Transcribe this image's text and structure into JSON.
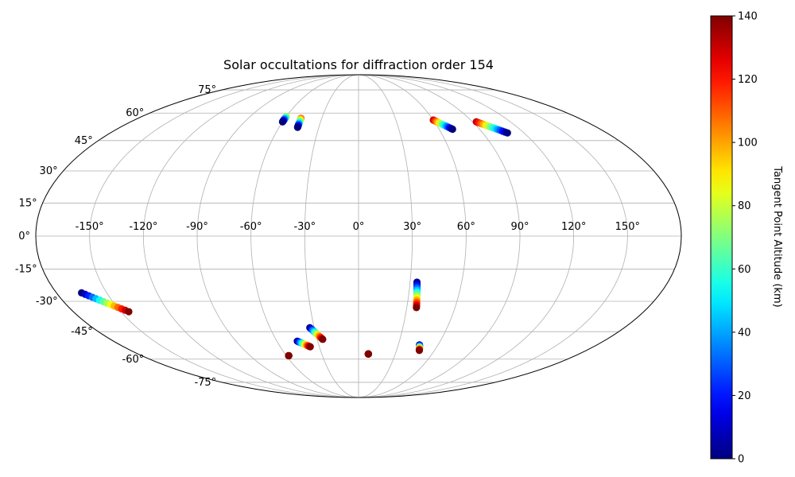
{
  "chart_data": {
    "type": "scatter",
    "projection": "mollweide",
    "title": "Solar occultations for diffraction order 154",
    "grid": true,
    "lon_ticks": [
      -150,
      -120,
      -90,
      -60,
      -30,
      0,
      30,
      60,
      90,
      120,
      150
    ],
    "lon_tick_labels": [
      "-150°",
      "-120°",
      "-90°",
      "-60°",
      "-30°",
      "0°",
      "30°",
      "60°",
      "90°",
      "120°",
      "150°"
    ],
    "lat_ticks": [
      -75,
      -60,
      -45,
      -30,
      -15,
      0,
      15,
      30,
      45,
      60,
      75
    ],
    "lat_tick_labels": [
      "-75°",
      "-60°",
      "-45°",
      "-30°",
      "-15°",
      "0°",
      "15°",
      "30°",
      "45°",
      "60°",
      "75°"
    ],
    "colorbar": {
      "label": "Tangent Point Altitude (km)",
      "colormap": "jet",
      "min": 0,
      "max": 140,
      "ticks": [
        0,
        20,
        40,
        60,
        80,
        100,
        120,
        140
      ],
      "tick_labels": [
        "0",
        "20",
        "40",
        "60",
        "80",
        "100",
        "120",
        "140"
      ]
    },
    "tracks": [
      {
        "lon_start": -60,
        "lat_start": 58,
        "alt_start": 80,
        "lon_end": -60,
        "lat_end": 55,
        "alt_end": 0
      },
      {
        "lon_start": -47,
        "lat_start": 57,
        "alt_start": 110,
        "lon_end": -46,
        "lat_end": 52,
        "alt_end": 0
      },
      {
        "lon_start": 60,
        "lat_start": 56,
        "alt_start": 130,
        "lon_end": 70,
        "lat_end": 51,
        "alt_end": 0
      },
      {
        "lon_start": 93,
        "lat_start": 55,
        "alt_start": 130,
        "lon_end": 108,
        "lat_end": 49,
        "alt_end": 0
      },
      {
        "lon_start": -165,
        "lat_start": -26,
        "alt_start": 0,
        "lon_end": -145,
        "lat_end": -35,
        "alt_end": 140
      },
      {
        "lon_start": -33,
        "lat_start": -43,
        "alt_start": 0,
        "lon_end": -26,
        "lat_end": -49,
        "alt_end": 140
      },
      {
        "lon_start": -45,
        "lat_start": -50,
        "alt_start": 0,
        "lon_end": -37,
        "lat_end": -53,
        "alt_end": 140
      },
      {
        "lon_start": 34,
        "lat_start": -21,
        "alt_start": 0,
        "lon_end": 36,
        "lat_end": -33,
        "alt_end": 140
      },
      {
        "lon_start": 46,
        "lat_start": -52,
        "alt_start": 0,
        "lon_end": 48,
        "lat_end": -55,
        "alt_end": 140
      },
      {
        "lon_start": -58,
        "lat_start": -58,
        "alt_start": 140,
        "lon_end": -58,
        "lat_end": -58,
        "alt_end": 140
      },
      {
        "lon_start": 8,
        "lat_start": -57,
        "alt_start": 140,
        "lon_end": 8,
        "lat_end": -57,
        "alt_end": 140
      }
    ]
  }
}
